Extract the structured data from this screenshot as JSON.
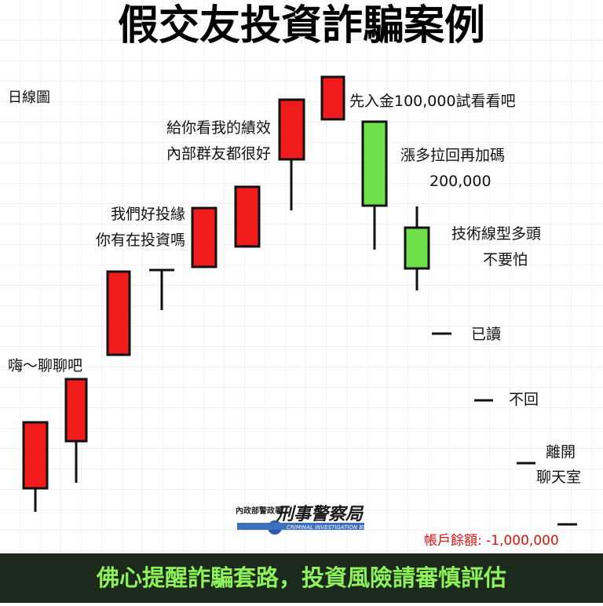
{
  "header": {
    "title": "假交友投資詐騙案例"
  },
  "chart_label": "日線圖",
  "annotations": [
    {
      "lines": [
        "嗨～聊聊吧"
      ]
    },
    {
      "lines": [
        "我們好投緣",
        "你有在投資嗎"
      ]
    },
    {
      "lines": [
        "給你看我的績效",
        "內部群友都很好"
      ]
    },
    {
      "lines": [
        "先入金100,000試看看吧"
      ]
    },
    {
      "lines": [
        "漲多拉回再加碼",
        "200,000"
      ]
    },
    {
      "lines": [
        "技術線型多頭",
        "不要怕"
      ]
    },
    {
      "lines": [
        "已讀"
      ]
    },
    {
      "lines": [
        "不回"
      ]
    },
    {
      "lines": [
        "離開",
        "聊天室"
      ]
    }
  ],
  "balance": "帳戶餘額: -1,000,000",
  "logo": {
    "agency": "內政部警政署",
    "name": "刑事警察局",
    "english": "CRIMINAL INVESTIGATION BUREAU"
  },
  "footer": {
    "text": "佛心提醒詐騙套路，投資風險請審慎評估"
  }
}
